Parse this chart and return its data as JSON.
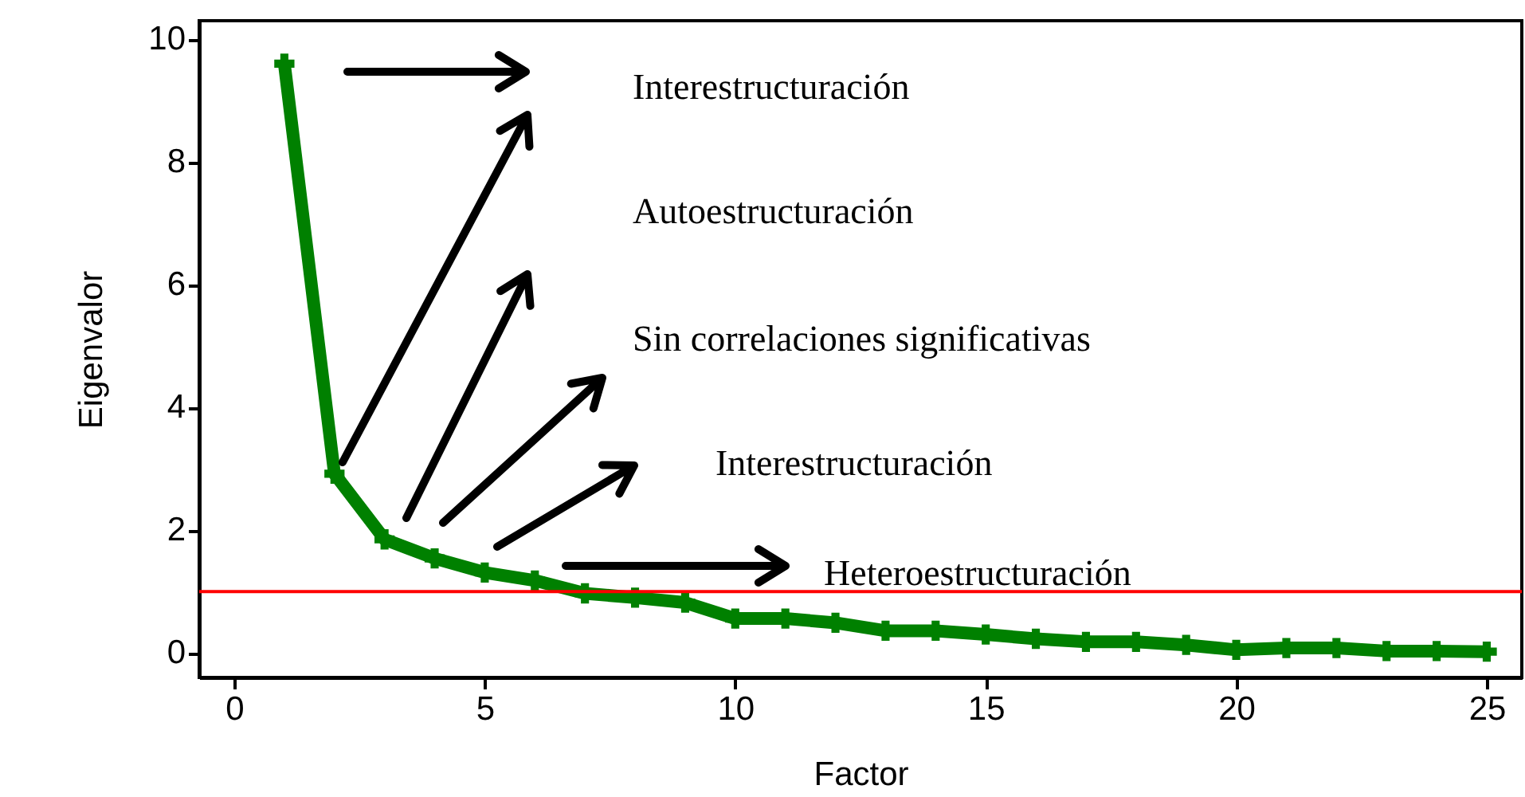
{
  "chart_data": {
    "type": "line",
    "xlabel": "Factor",
    "ylabel": "Eigenvalor",
    "x": [
      1,
      2,
      3,
      4,
      5,
      6,
      7,
      8,
      9,
      10,
      11,
      12,
      13,
      14,
      15,
      16,
      17,
      18,
      19,
      20,
      21,
      22,
      23,
      24,
      25
    ],
    "series": [
      {
        "color": "#008000",
        "values": [
          9.6,
          2.92,
          1.85,
          1.54,
          1.31,
          1.18,
          0.97,
          0.9,
          0.82,
          0.56,
          0.56,
          0.49,
          0.36,
          0.36,
          0.3,
          0.23,
          0.18,
          0.18,
          0.13,
          0.05,
          0.08,
          0.08,
          0.03,
          0.03,
          0.02
        ]
      }
    ],
    "xlim": [
      -0.7,
      25.7
    ],
    "xticks": [
      0,
      5,
      10,
      15,
      20,
      25
    ],
    "ylim": [
      -0.4,
      10.3
    ],
    "yticks": [
      0,
      2,
      4,
      6,
      8,
      10
    ],
    "ref_lines": [
      {
        "axis": "y",
        "value": 1,
        "color": "#ff0000"
      }
    ],
    "annotations": [
      "Interestructuración",
      "Autoestructuración",
      "Sin correlaciones significativas",
      "Interestructuración",
      "Heteroestructuración"
    ],
    "grid": false,
    "marker": "cross",
    "line_style": "solid"
  }
}
